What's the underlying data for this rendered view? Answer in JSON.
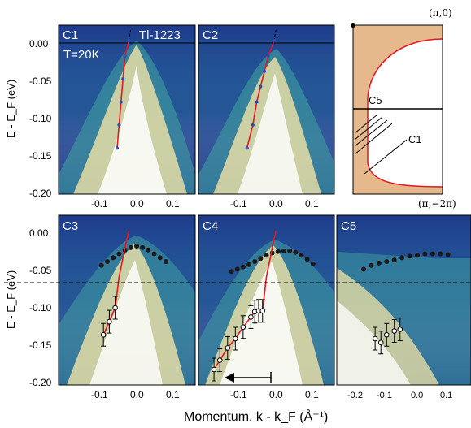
{
  "figure": {
    "y_axis_label_top": "E - E_F (eV)",
    "y_axis_label_bottom": "E - E_F (eV)",
    "x_axis_label": "Momentum, k - k_F (Å⁻¹)",
    "y_ticks": [
      "0.00",
      "-0.05",
      "-0.10",
      "-0.15",
      "-0.20"
    ],
    "x_ticks_c1": [
      "-0.1",
      "0.0",
      "0.1"
    ],
    "x_ticks_c5": [
      "-0.2",
      "-0.1",
      "0.0",
      "0.1"
    ],
    "colors": {
      "dispersion": "#e8141e",
      "dots": "#1a1a1a",
      "fill": "#e6b98c",
      "fermi_surface": "#e8141e",
      "panel_bg": "#1e3a8c"
    }
  },
  "panels": {
    "c1": {
      "label": "C1",
      "sample": "Tl-1223",
      "temperature": "T=20K"
    },
    "c2": {
      "label": "C2"
    },
    "c3": {
      "label": "C3"
    },
    "c4": {
      "label": "C4"
    },
    "c5": {
      "label": "C5"
    }
  },
  "schematic": {
    "corner_top": "(π,0)",
    "corner_bottom": "(π,−2π)",
    "cut_c5": "C5",
    "cut_c1": "C1"
  },
  "chart_data": [
    {
      "type": "line",
      "panel": "C1",
      "xlim": [
        -0.2,
        0.15
      ],
      "ylim": [
        -0.2,
        0.02
      ],
      "series": [
        {
          "values": [
            [
              -0.05,
              -0.14
            ],
            [
              -0.045,
              -0.11
            ],
            [
              -0.04,
              -0.08
            ],
            [
              -0.035,
              -0.05
            ],
            [
              -0.03,
              -0.02
            ],
            [
              -0.02,
              0.0
            ]
          ]
        }
      ]
    },
    {
      "type": "line",
      "panel": "C2",
      "xlim": [
        -0.2,
        0.15
      ],
      "ylim": [
        -0.2,
        0.02
      ],
      "series": [
        {
          "values": [
            [
              -0.075,
              -0.14
            ],
            [
              -0.06,
              -0.11
            ],
            [
              -0.05,
              -0.08
            ],
            [
              -0.04,
              -0.06
            ],
            [
              -0.03,
              -0.04
            ],
            [
              -0.02,
              -0.02
            ],
            [
              -0.005,
              0.0
            ]
          ]
        }
      ]
    },
    {
      "type": "scatter",
      "panel": "C3",
      "xlim": [
        -0.2,
        0.15
      ],
      "ylim": [
        -0.2,
        0.02
      ],
      "series": [
        {
          "values": [
            [
              -0.09,
              -0.045
            ],
            [
              -0.075,
              -0.04
            ],
            [
              -0.06,
              -0.035
            ],
            [
              -0.045,
              -0.03
            ],
            [
              -0.03,
              -0.025
            ],
            [
              -0.015,
              -0.022
            ],
            [
              0.0,
              -0.02
            ],
            [
              0.015,
              -0.022
            ],
            [
              0.03,
              -0.025
            ],
            [
              0.045,
              -0.03
            ],
            [
              0.06,
              -0.035
            ],
            [
              0.075,
              -0.04
            ]
          ]
        },
        {
          "values": [
            [
              -0.085,
              -0.135
            ],
            [
              -0.07,
              -0.118
            ],
            [
              -0.055,
              -0.1
            ]
          ]
        }
      ]
    },
    {
      "type": "scatter",
      "panel": "C4",
      "xlim": [
        -0.2,
        0.15
      ],
      "ylim": [
        -0.2,
        0.02
      ],
      "series": [
        {
          "values": [
            [
              -0.115,
              -0.053
            ],
            [
              -0.1,
              -0.05
            ],
            [
              -0.085,
              -0.047
            ],
            [
              -0.07,
              -0.044
            ],
            [
              -0.055,
              -0.04
            ],
            [
              -0.04,
              -0.036
            ],
            [
              -0.025,
              -0.032
            ],
            [
              -0.01,
              -0.029
            ],
            [
              0.005,
              -0.027
            ],
            [
              0.02,
              -0.026
            ],
            [
              0.035,
              -0.026
            ],
            [
              0.05,
              -0.028
            ],
            [
              0.065,
              -0.032
            ],
            [
              0.08,
              -0.037
            ],
            [
              0.095,
              -0.043
            ]
          ]
        },
        {
          "values": [
            [
              -0.16,
              -0.18
            ],
            [
              -0.145,
              -0.168
            ],
            [
              -0.125,
              -0.152
            ],
            [
              -0.105,
              -0.14
            ],
            [
              -0.085,
              -0.125
            ],
            [
              -0.065,
              -0.112
            ],
            [
              -0.055,
              -0.105
            ],
            [
              -0.045,
              -0.104
            ],
            [
              -0.035,
              -0.104
            ]
          ]
        }
      ]
    },
    {
      "type": "scatter",
      "panel": "C5",
      "xlim": [
        -0.25,
        0.1
      ],
      "ylim": [
        -0.2,
        0.02
      ],
      "series": [
        {
          "values": [
            [
              -0.18,
              -0.05
            ],
            [
              -0.16,
              -0.045
            ],
            [
              -0.14,
              -0.042
            ],
            [
              -0.12,
              -0.04
            ],
            [
              -0.1,
              -0.038
            ],
            [
              -0.08,
              -0.035
            ],
            [
              -0.06,
              -0.033
            ],
            [
              -0.04,
              -0.032
            ],
            [
              -0.02,
              -0.03
            ],
            [
              0.0,
              -0.03
            ],
            [
              0.02,
              -0.03
            ],
            [
              0.04,
              -0.031
            ]
          ]
        },
        {
          "values": [
            [
              -0.15,
              -0.14
            ],
            [
              -0.135,
              -0.145
            ],
            [
              -0.12,
              -0.135
            ],
            [
              -0.1,
              -0.13
            ],
            [
              -0.085,
              -0.128
            ]
          ]
        }
      ]
    }
  ]
}
